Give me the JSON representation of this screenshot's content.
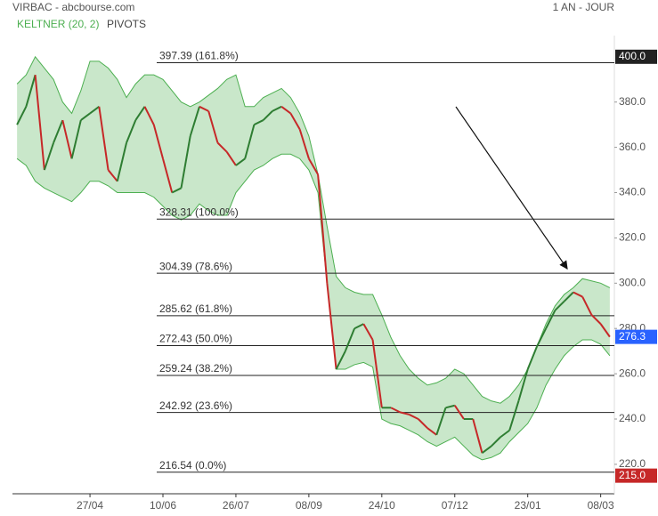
{
  "chart_data": {
    "type": "line",
    "title": "VIRBAC - abcbourse.com",
    "period": "1 AN - JOUR",
    "categories": [
      null,
      null,
      null,
      null,
      null,
      null,
      null,
      null,
      "27/04",
      null,
      null,
      null,
      null,
      null,
      null,
      null,
      "10/06",
      null,
      null,
      null,
      null,
      null,
      null,
      null,
      "26/07",
      null,
      null,
      null,
      null,
      null,
      null,
      null,
      "08/09",
      null,
      null,
      null,
      null,
      null,
      null,
      null,
      "24/10",
      null,
      null,
      null,
      null,
      null,
      null,
      null,
      "07/12",
      null,
      null,
      null,
      null,
      null,
      null,
      null,
      "23/01",
      null,
      null,
      null,
      null,
      null,
      null,
      null,
      "08/03",
      null
    ],
    "price": {
      "color": "#2e7d32",
      "values": [
        370,
        378,
        392,
        350,
        362,
        372,
        355,
        372,
        375,
        378,
        350,
        345,
        362,
        372,
        378,
        370,
        355,
        340,
        342,
        365,
        378,
        376,
        362,
        358,
        352,
        355,
        370,
        372,
        376,
        378,
        375,
        368,
        355,
        348,
        300,
        262,
        270,
        280,
        282,
        275,
        245,
        245,
        243,
        242,
        240,
        236,
        233,
        245,
        246,
        240,
        240,
        225,
        228,
        232,
        235,
        248,
        262,
        272,
        280,
        288,
        292,
        296,
        294,
        286,
        282,
        276.3
      ]
    },
    "keltner": {
      "name": "KELTNER (20, 2)",
      "color": "#4caf50",
      "upper": [
        388,
        392,
        400,
        395,
        390,
        380,
        375,
        385,
        398,
        398,
        395,
        390,
        382,
        388,
        392,
        392,
        390,
        385,
        380,
        378,
        380,
        383,
        386,
        390,
        392,
        378,
        378,
        382,
        384,
        386,
        382,
        375,
        365,
        348,
        325,
        303,
        298,
        296,
        295,
        295,
        286,
        276,
        268,
        262,
        258,
        255,
        256,
        258,
        262,
        260,
        255,
        250,
        248,
        247,
        250,
        255,
        262,
        272,
        282,
        290,
        295,
        298,
        302,
        301,
        300,
        298
      ],
      "lower": [
        355,
        352,
        345,
        342,
        340,
        338,
        336,
        340,
        345,
        345,
        343,
        340,
        340,
        340,
        340,
        338,
        334,
        330,
        328,
        330,
        335,
        332,
        330,
        330,
        340,
        345,
        350,
        352,
        355,
        357,
        357,
        355,
        350,
        340,
        300,
        262,
        262,
        264,
        265,
        263,
        240,
        238,
        237,
        235,
        233,
        230,
        228,
        230,
        232,
        228,
        224,
        222,
        223,
        225,
        230,
        234,
        238,
        245,
        255,
        262,
        268,
        272,
        275,
        275,
        273,
        268
      ]
    },
    "pivots": {
      "name": "PIVOTS",
      "levels": [
        {
          "value": 397.39,
          "label": "397.39  (161.8%)"
        },
        {
          "value": 328.31,
          "label": "328.31  (100.0%)"
        },
        {
          "value": 304.39,
          "label": "304.39  (78.6%)"
        },
        {
          "value": 285.62,
          "label": "285.62  (61.8%)"
        },
        {
          "value": 272.43,
          "label": "272.43  (50.0%)"
        },
        {
          "value": 259.24,
          "label": "259.24  (38.2%)"
        },
        {
          "value": 242.92,
          "label": "242.92  (23.6%)"
        },
        {
          "value": 216.54,
          "label": "216.54  (0.0%)"
        }
      ]
    },
    "ylim": [
      207,
      418
    ],
    "yticks": [
      {
        "value": 220,
        "label": "220.0"
      },
      {
        "value": 240,
        "label": "240.0"
      },
      {
        "value": 260,
        "label": "260.0"
      },
      {
        "value": 280,
        "label": "280.0"
      },
      {
        "value": 300,
        "label": "300.0"
      },
      {
        "value": 320,
        "label": "320.0"
      },
      {
        "value": 340,
        "label": "340.0"
      },
      {
        "value": 360,
        "label": "360.0"
      },
      {
        "value": 380,
        "label": "380.0"
      }
    ],
    "markers": [
      {
        "value": 400,
        "label": "400.0",
        "color": "#222222"
      },
      {
        "value": 276.3,
        "label": "276.3",
        "color": "#2962ff"
      },
      {
        "value": 215,
        "label": "215.0",
        "color": "#c62828"
      }
    ]
  }
}
